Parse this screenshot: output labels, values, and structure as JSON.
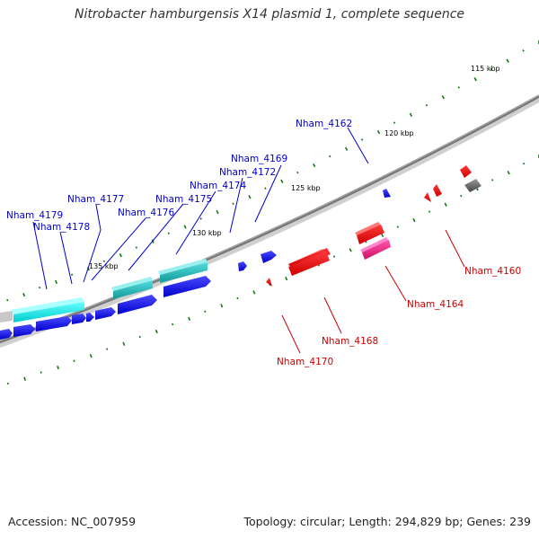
{
  "title": "Nitrobacter hamburgensis X14 plasmid 1, complete sequence",
  "footer": {
    "accession": "Accession: NC_007959",
    "summary": "Topology: circular; Length: 294,829 bp; Genes: 239"
  },
  "scale_labels": [
    "115 kbp",
    "120 kbp",
    "125 kbp",
    "130 kbp",
    "135 kbp"
  ],
  "gene_labels": {
    "nham_4162": "Nham_4162",
    "nham_4169": "Nham_4169",
    "nham_4172": "Nham_4172",
    "nham_4174": "Nham_4174",
    "nham_4175": "Nham_4175",
    "nham_4176": "Nham_4176",
    "nham_4177": "Nham_4177",
    "nham_4178": "Nham_4178",
    "nham_4179": "Nham_4179",
    "nham_4160": "Nham_4160",
    "nham_4164": "Nham_4164",
    "nham_4168": "Nham_4168",
    "nham_4170": "Nham_4170"
  },
  "colors": {
    "forward_label": "#0000cc",
    "reverse_label": "#cc0000",
    "forward_gene": "#0000ee",
    "reverse_gene": "#ee0000",
    "cyan_feature": "#00dddd",
    "teal_feature": "#22bbbb",
    "pink_feature": "#ee2288",
    "gray_feature": "#666666",
    "backbone": "#888888",
    "tick": "#117711"
  }
}
